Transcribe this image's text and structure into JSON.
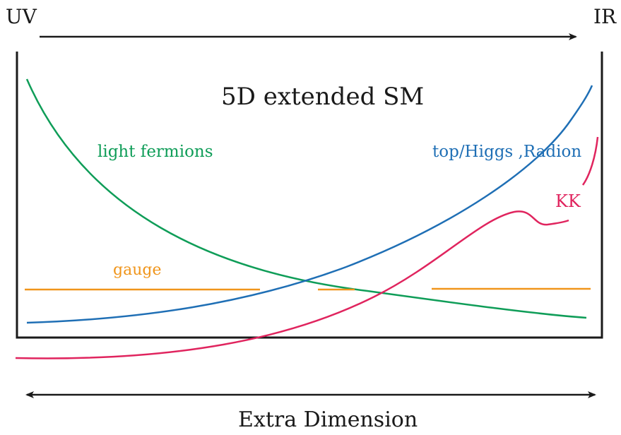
{
  "labels": {
    "uv": "UV",
    "ir": "IR",
    "title": "5D extended SM",
    "light_fermions": "light fermions",
    "top_higgs_radion": "top/Higgs ,Radion",
    "kk": "KK",
    "gauge": "gauge",
    "extra_dimension": "Extra Dimension"
  },
  "colors": {
    "light_fermions": "#0f9d58",
    "top_higgs_radion": "#1f6fb5",
    "kk": "#e0245e",
    "gauge": "#f0951b",
    "frame": "#1a1a1a"
  }
}
